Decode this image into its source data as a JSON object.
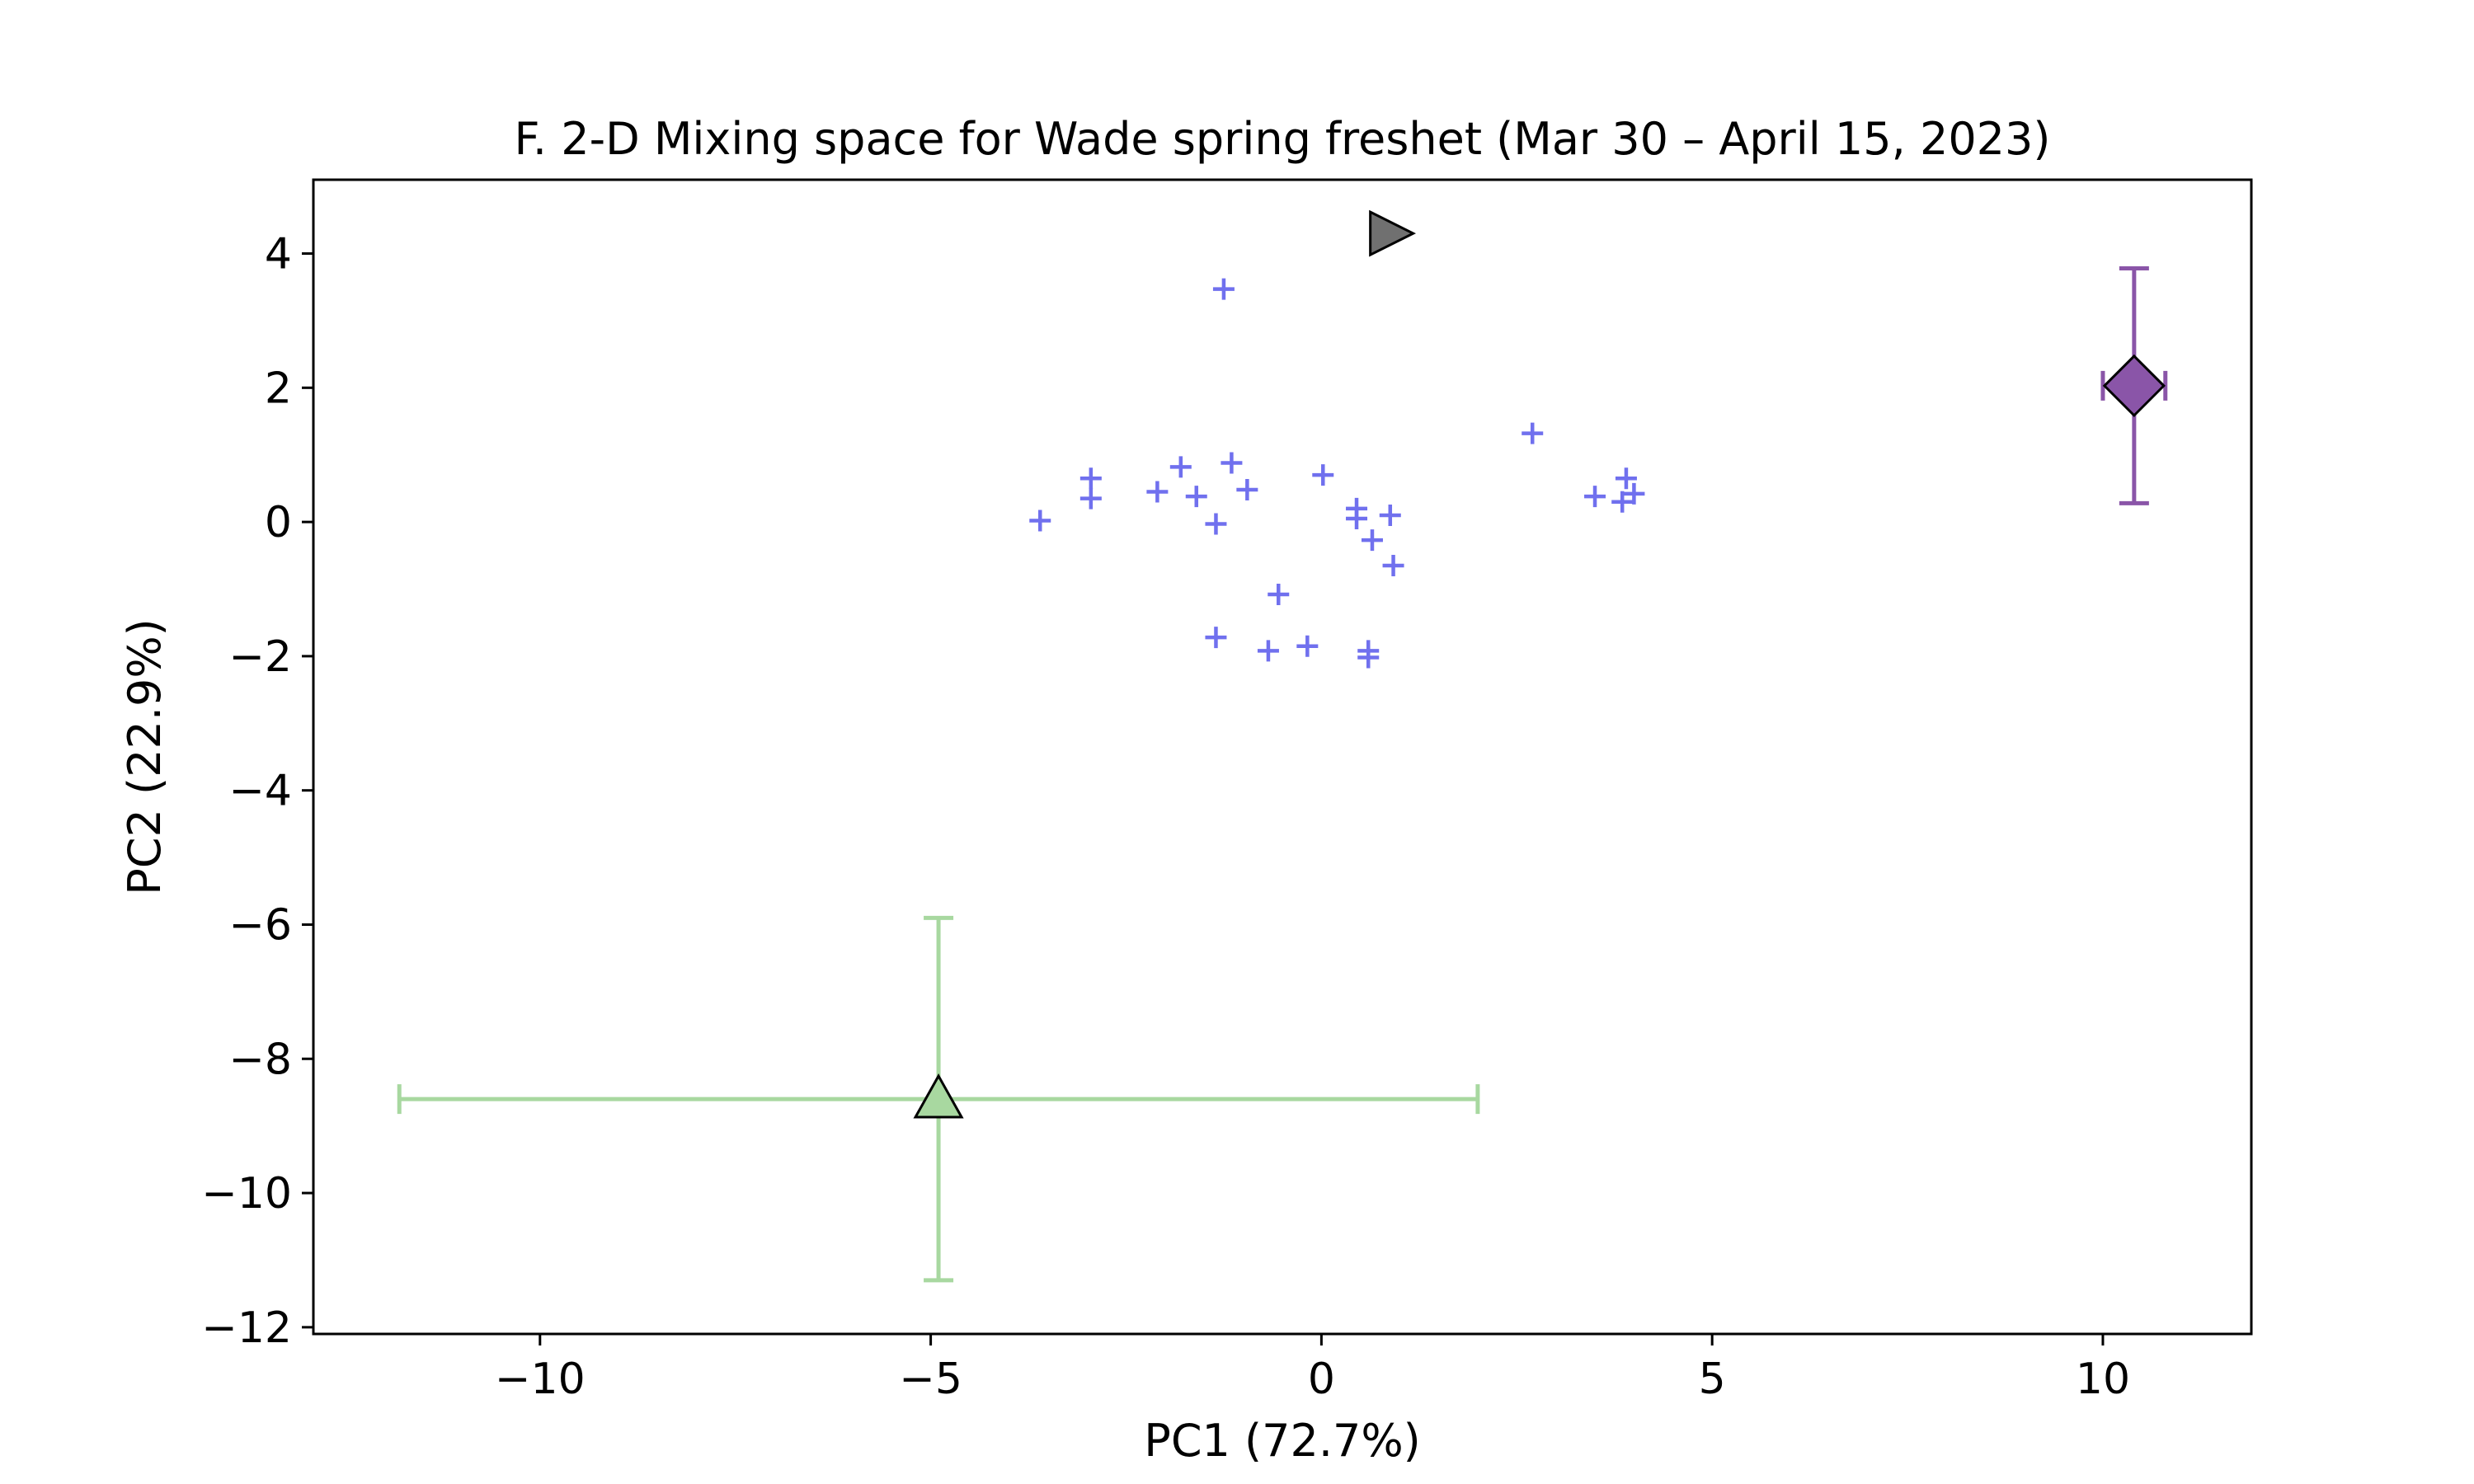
{
  "chart_data": {
    "type": "scatter",
    "title": "F. 2-D Mixing space for Wade spring freshet (Mar 30 – April 15, 2023)",
    "xlabel": "PC1 (72.7%)",
    "ylabel": "PC2 (22.9%)",
    "xlim": [
      -12.9,
      11.9
    ],
    "ylim": [
      -12.1,
      5.1
    ],
    "xticks": [
      -10,
      -5,
      0,
      5,
      10
    ],
    "yticks": [
      4,
      2,
      0,
      -2,
      -4,
      -6,
      -8,
      -10,
      -12
    ],
    "xtick_labels": [
      "−10",
      "−5",
      "0",
      "5",
      "10"
    ],
    "ytick_labels": [
      "4",
      "2",
      "0",
      "−2",
      "−4",
      "−6",
      "−8",
      "−10",
      "−12"
    ],
    "grid": false,
    "legend": "none",
    "series": [
      {
        "marker": "plus",
        "color": "#7070ee",
        "points": [
          [
            -1.25,
            3.47
          ],
          [
            -3.6,
            0.02
          ],
          [
            -2.95,
            0.65
          ],
          [
            -2.95,
            0.35
          ],
          [
            -2.1,
            0.45
          ],
          [
            -1.8,
            0.82
          ],
          [
            -1.6,
            0.38
          ],
          [
            -1.15,
            0.88
          ],
          [
            -0.95,
            0.48
          ],
          [
            -1.35,
            -0.03
          ],
          [
            0.02,
            0.7
          ],
          [
            0.45,
            0.2
          ],
          [
            0.45,
            0.05
          ],
          [
            0.88,
            0.1
          ],
          [
            0.65,
            -0.27
          ],
          [
            0.92,
            -0.65
          ],
          [
            -0.55,
            -1.08
          ],
          [
            -1.35,
            -1.72
          ],
          [
            -0.68,
            -1.92
          ],
          [
            -0.18,
            -1.85
          ],
          [
            0.6,
            -1.92
          ],
          [
            0.6,
            -2.02
          ],
          [
            2.7,
            1.32
          ],
          [
            3.5,
            0.38
          ],
          [
            3.9,
            0.65
          ],
          [
            3.85,
            0.3
          ],
          [
            4.0,
            0.42
          ]
        ]
      },
      {
        "marker": "diamond",
        "color": "#8a55a8",
        "x": 10.4,
        "y": 2.03,
        "xerr": 0.4,
        "yerr": 1.75
      },
      {
        "marker": "triangle-up",
        "color": "#a8d8a0",
        "x": -4.9,
        "y": -8.6,
        "xerr": 6.9,
        "yerr": 2.7
      },
      {
        "marker": "triangle-right",
        "color": "#707070",
        "x": 0.9,
        "y": 4.3
      }
    ]
  }
}
